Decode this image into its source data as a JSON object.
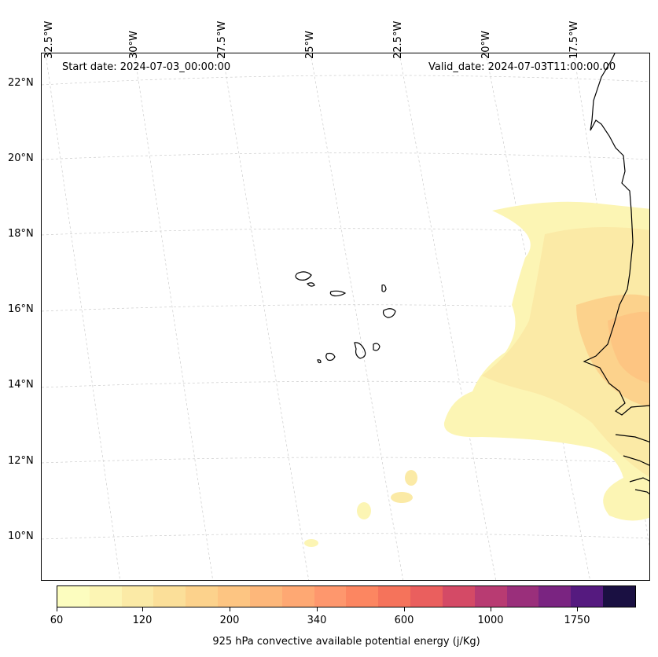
{
  "annotations": {
    "start_date": "Start date: 2024-07-03_00:00:00",
    "valid_date": "Valid_date: 2024-07-03T11:00:00.00"
  },
  "lat_labels": [
    "22°N",
    "20°N",
    "18°N",
    "16°N",
    "14°N",
    "12°N",
    "10°N"
  ],
  "lon_labels": [
    "32.5°W",
    "30°W",
    "27.5°W",
    "25°W",
    "22.5°W",
    "20°W",
    "17.5°W"
  ],
  "colorbar": {
    "title": "925 hPa convective available potential energy (j/Kg)",
    "tick_labels": [
      "60",
      "120",
      "200",
      "340",
      "600",
      "1000",
      "1750"
    ],
    "colors": [
      "#fcfdbf",
      "#fcf5b4",
      "#fbeaa6",
      "#fbdf99",
      "#fcd28c",
      "#fdc582",
      "#fdb77a",
      "#fea873",
      "#fe976d",
      "#fc8661",
      "#f5735b",
      "#ea5f5e",
      "#d44a66",
      "#b83b72",
      "#9a2f7b",
      "#7a2481",
      "#551a7f",
      "#1a1042"
    ]
  }
}
